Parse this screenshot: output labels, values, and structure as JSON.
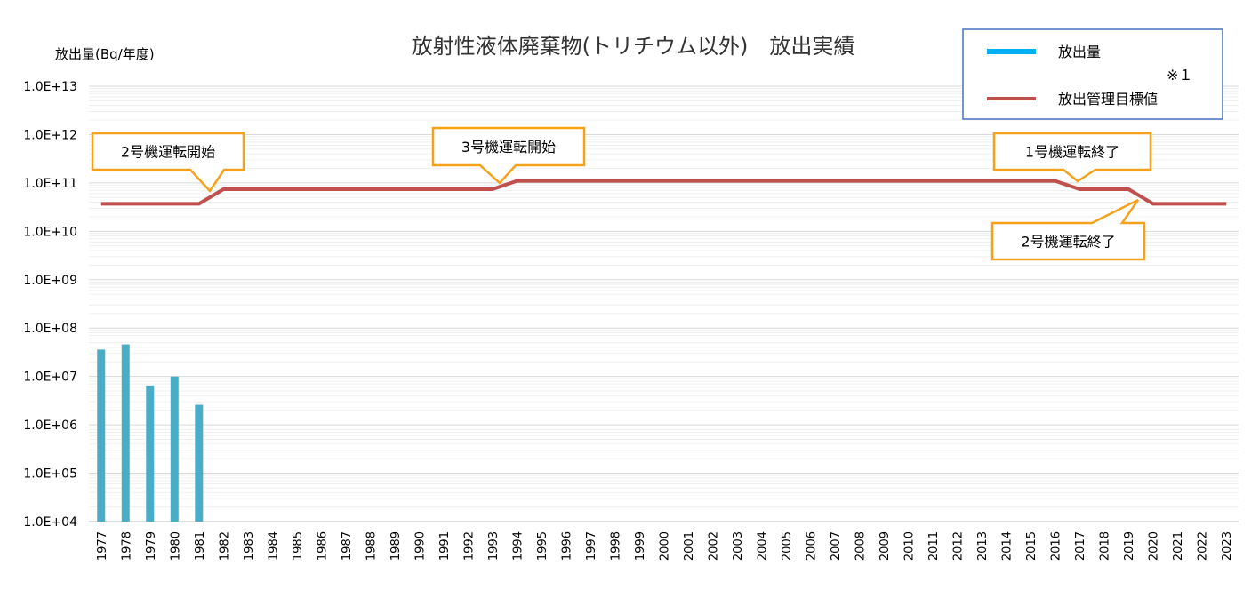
{
  "chart_data": {
    "type": "bar",
    "title": "放射性液体廃棄物(トリチウム以外)　放出実績",
    "ylabel": "放出量(Bq/年度)",
    "xlabel": "",
    "yscale": "log",
    "ylim": [
      10000.0,
      10000000000000.0
    ],
    "y_tick_labels": [
      "1.0E+04",
      "1.0E+05",
      "1.0E+06",
      "1.0E+07",
      "1.0E+08",
      "1.0E+09",
      "1.0E+10",
      "1.0E+11",
      "1.0E+12",
      "1.0E+13"
    ],
    "categories": [
      "1977",
      "1978",
      "1979",
      "1980",
      "1981",
      "1982",
      "1983",
      "1984",
      "1985",
      "1986",
      "1987",
      "1988",
      "1989",
      "1990",
      "1991",
      "1992",
      "1993",
      "1994",
      "1995",
      "1996",
      "1997",
      "1998",
      "1999",
      "2000",
      "2001",
      "2002",
      "2003",
      "2004",
      "2005",
      "2006",
      "2007",
      "2008",
      "2009",
      "2010",
      "2011",
      "2012",
      "2013",
      "2014",
      "2015",
      "2016",
      "2017",
      "2018",
      "2019",
      "2020",
      "2021",
      "2022",
      "2023"
    ],
    "series": [
      {
        "name": "放出量",
        "type": "bar",
        "color": "#4BACC6",
        "values": [
          36000000.0,
          46000000.0,
          6500000.0,
          10000000.0,
          2600000.0,
          null,
          null,
          null,
          null,
          null,
          null,
          null,
          null,
          null,
          null,
          null,
          null,
          null,
          null,
          null,
          null,
          null,
          null,
          null,
          null,
          null,
          null,
          null,
          null,
          null,
          null,
          null,
          null,
          null,
          null,
          null,
          null,
          null,
          null,
          null,
          null,
          null,
          null,
          null,
          null,
          null,
          null
        ]
      },
      {
        "name": "放出管理目標値",
        "type": "line",
        "color": "#C0504D",
        "values": [
          37000000000.0,
          37000000000.0,
          37000000000.0,
          37000000000.0,
          37000000000.0,
          74000000000.0,
          74000000000.0,
          74000000000.0,
          74000000000.0,
          74000000000.0,
          74000000000.0,
          74000000000.0,
          74000000000.0,
          74000000000.0,
          74000000000.0,
          74000000000.0,
          74000000000.0,
          110000000000.0,
          110000000000.0,
          110000000000.0,
          110000000000.0,
          110000000000.0,
          110000000000.0,
          110000000000.0,
          110000000000.0,
          110000000000.0,
          110000000000.0,
          110000000000.0,
          110000000000.0,
          110000000000.0,
          110000000000.0,
          110000000000.0,
          110000000000.0,
          110000000000.0,
          110000000000.0,
          110000000000.0,
          110000000000.0,
          110000000000.0,
          110000000000.0,
          110000000000.0,
          74000000000.0,
          74000000000.0,
          74000000000.0,
          37000000000.0,
          37000000000.0,
          37000000000.0,
          37000000000.0
        ]
      }
    ],
    "legend": {
      "placement": "top-right",
      "note": "※１"
    },
    "grid": true,
    "annotations": [
      {
        "text": "2号機運転開始",
        "year": "1982"
      },
      {
        "text": "3号機運転開始",
        "year": "1994"
      },
      {
        "text": "1号機運転終了",
        "year": "2017"
      },
      {
        "text": "2号機運転終了",
        "year": "2020"
      }
    ],
    "colors": {
      "grid": "#D9D9D9",
      "minor_grid": "#EFEFEF",
      "callout_border": "#F5A11A",
      "legend_border": "#4472C4"
    }
  }
}
